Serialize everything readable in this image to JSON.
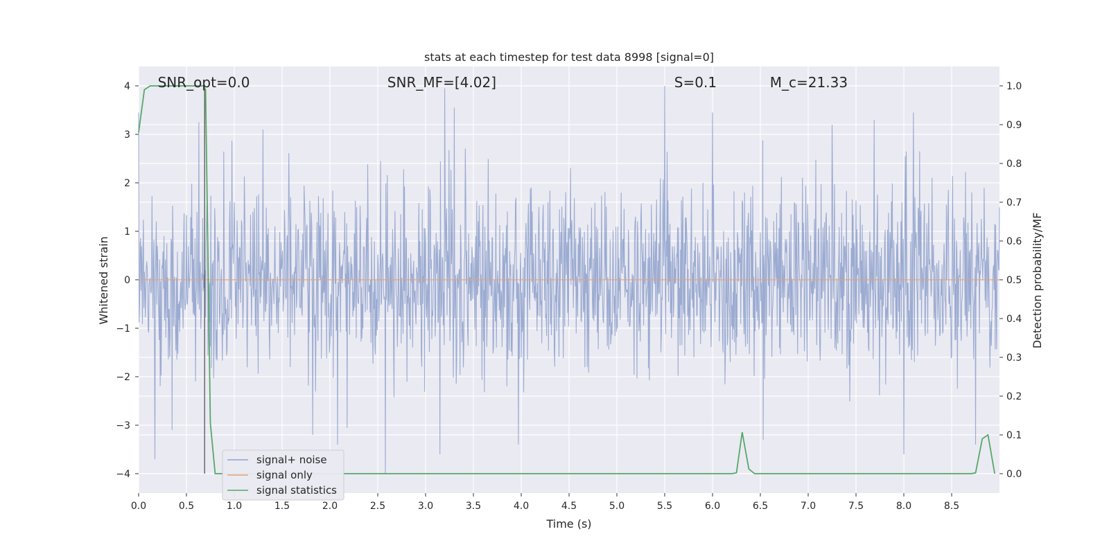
{
  "chart_data": {
    "type": "line",
    "title": "stats at each timestep for test data 8998 [signal=0]",
    "xlabel": "Time (s)",
    "ylabel_left": "Whitened strain",
    "ylabel_right": "Detection probability/MF",
    "xlim": [
      0,
      9.0
    ],
    "ylim_left": [
      -4.4,
      4.4
    ],
    "ylim_right": [
      -0.05,
      1.05
    ],
    "x_ticks": [
      "0.0",
      "0.5",
      "1.0",
      "1.5",
      "2.0",
      "2.5",
      "3.0",
      "3.5",
      "4.0",
      "4.5",
      "5.0",
      "5.5",
      "6.0",
      "6.5",
      "7.0",
      "7.5",
      "8.0",
      "8.5"
    ],
    "y_ticks_left": [
      "−4",
      "−3",
      "−2",
      "−1",
      "0",
      "1",
      "2",
      "3",
      "4"
    ],
    "y_ticks_right": [
      "0.0",
      "0.1",
      "0.2",
      "0.3",
      "0.4",
      "0.5",
      "0.6",
      "0.7",
      "0.8",
      "0.9",
      "1.0"
    ],
    "grid": true,
    "legend_placement": "lower-left",
    "annotations": [
      {
        "text": "SNR_opt=0.0",
        "x": 0.2,
        "y": 4.1
      },
      {
        "text": "SNR_MF=[4.02]",
        "x": 2.6,
        "y": 4.1
      },
      {
        "text": "S=0.1",
        "x": 5.6,
        "y": 4.1
      },
      {
        "text": "M_c=21.33",
        "x": 6.6,
        "y": 4.1
      }
    ],
    "vline_x": 0.69,
    "series": [
      {
        "name": "signal+ noise",
        "color": "#8da0cb",
        "axis": "left",
        "style": "dense noise trace",
        "peaks": [
          {
            "x": 0.0,
            "y": 3.45
          },
          {
            "x": 0.17,
            "y": -3.7
          },
          {
            "x": 0.35,
            "y": -3.1
          },
          {
            "x": 0.63,
            "y": 3.25
          },
          {
            "x": 1.3,
            "y": 3.1
          },
          {
            "x": 1.82,
            "y": -3.2
          },
          {
            "x": 2.08,
            "y": -3.4
          },
          {
            "x": 2.58,
            "y": -4.0
          },
          {
            "x": 3.2,
            "y": 3.95
          },
          {
            "x": 3.15,
            "y": -3.6
          },
          {
            "x": 3.3,
            "y": 3.55
          },
          {
            "x": 3.97,
            "y": -3.4
          },
          {
            "x": 5.5,
            "y": 4.0
          },
          {
            "x": 6.0,
            "y": 3.45
          },
          {
            "x": 6.53,
            "y": -3.3
          },
          {
            "x": 7.25,
            "y": 3.2
          },
          {
            "x": 8.0,
            "y": -3.6
          },
          {
            "x": 8.1,
            "y": 3.45
          },
          {
            "x": 8.75,
            "y": -3.4
          }
        ]
      },
      {
        "name": "signal only",
        "color": "#e1a17b",
        "axis": "left",
        "x": [
          0,
          9.0
        ],
        "y": [
          0,
          0
        ]
      },
      {
        "name": "signal statistics",
        "color": "#55a868",
        "axis": "right",
        "x": [
          0.0,
          0.06,
          0.12,
          0.2,
          0.3,
          0.4,
          0.5,
          0.6,
          0.68,
          0.7,
          0.75,
          0.8,
          0.9,
          1.0,
          2.0,
          3.0,
          4.0,
          5.0,
          6.0,
          6.2,
          6.25,
          6.31,
          6.38,
          6.44,
          6.5,
          7.0,
          8.0,
          8.7,
          8.75,
          8.82,
          8.88,
          8.95
        ],
        "y": [
          0.88,
          0.99,
          1.0,
          1.0,
          1.0,
          1.0,
          1.0,
          1.0,
          1.0,
          0.99,
          0.13,
          0.0,
          0.0,
          0.0,
          0.0,
          0.0,
          0.0,
          0.0,
          0.0,
          0.0,
          0.002,
          0.107,
          0.012,
          0.0,
          0.0,
          0.0,
          0.0,
          0.0,
          0.002,
          0.09,
          0.1,
          0.0
        ]
      }
    ]
  }
}
